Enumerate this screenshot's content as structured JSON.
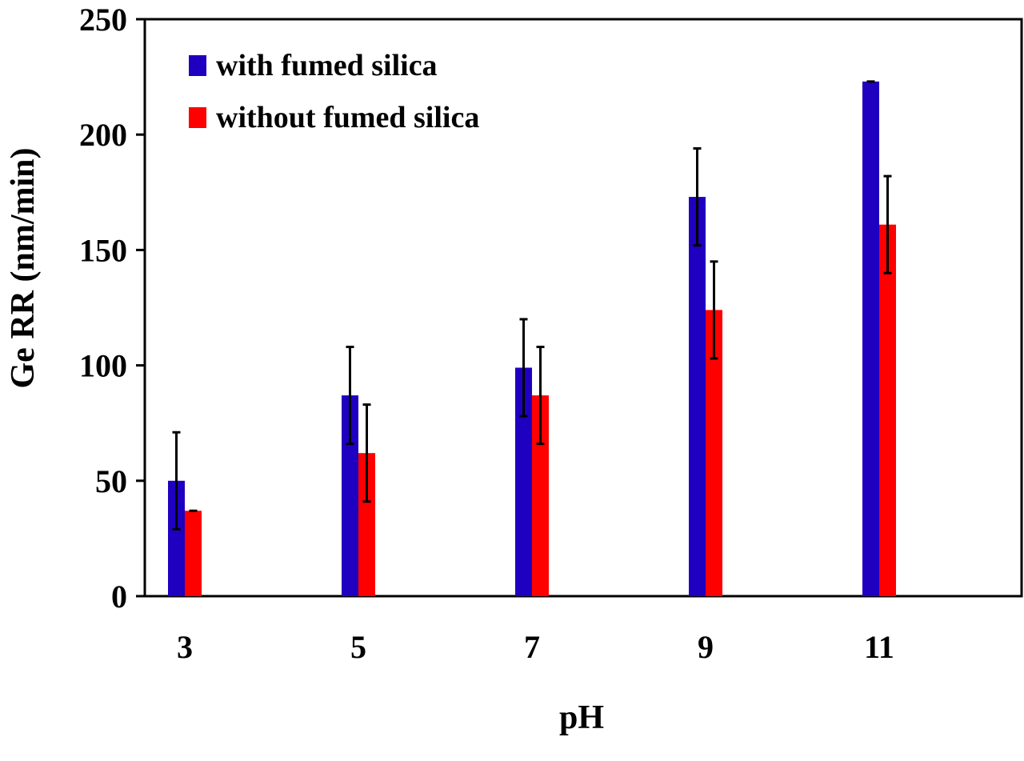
{
  "chart_data": {
    "type": "bar",
    "categories": [
      "3",
      "5",
      "7",
      "9",
      "11"
    ],
    "series": [
      {
        "name": "with fumed silica",
        "color": "#1f00c0",
        "values": [
          50,
          87,
          99,
          173,
          223
        ],
        "errors": [
          21,
          21,
          21,
          21,
          0
        ]
      },
      {
        "name": "without fumed silica",
        "color": "#ff0000",
        "values": [
          37,
          62,
          87,
          124,
          161
        ],
        "errors": [
          0,
          21,
          21,
          21,
          21
        ]
      }
    ],
    "xlabel": "pH",
    "ylabel": "Ge RR (nm/min)",
    "ylim": [
      0,
      250
    ],
    "yticks": [
      "0",
      "50",
      "100",
      "150",
      "200",
      "250"
    ],
    "grid": false,
    "legend": "top-left"
  }
}
